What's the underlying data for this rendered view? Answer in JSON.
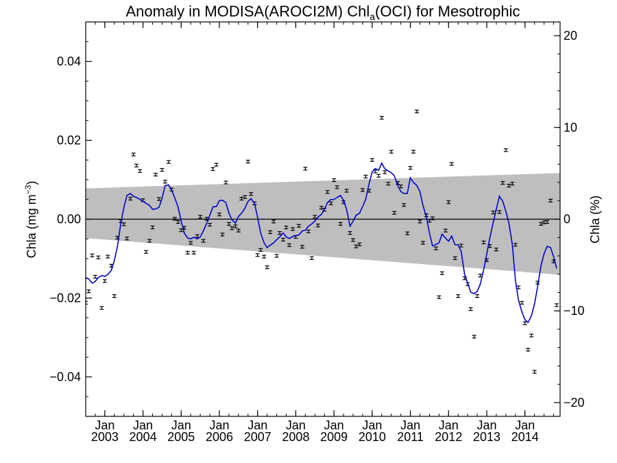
{
  "chart_data": {
    "type": "scatter",
    "title": {
      "main": "Anomaly in MODISA(AROCI2M) Chl",
      "subscript": "a",
      "rest": "(OCI) for Mesotrophic"
    },
    "ylabel": {
      "text": "Chla (mg m",
      "superscript": "−3",
      "close": ")"
    },
    "y2label": "Chla (%)",
    "xlim": [
      2002.5,
      2014.92
    ],
    "ylim": [
      -0.05,
      0.05
    ],
    "y2lim": [
      -21.5,
      21.5
    ],
    "yticks": [
      {
        "value": 0.04,
        "label": "0.04"
      },
      {
        "value": 0.02,
        "label": "0.02"
      },
      {
        "value": 0.0,
        "label": "0.00"
      },
      {
        "value": -0.02,
        "label": "−0.02"
      },
      {
        "value": -0.04,
        "label": "−0.04"
      }
    ],
    "y2ticks": [
      {
        "value": 20,
        "label": "20"
      },
      {
        "value": 10,
        "label": "10"
      },
      {
        "value": 0,
        "label": "0"
      },
      {
        "value": -10,
        "label": "−10"
      },
      {
        "value": -20,
        "label": "−20"
      }
    ],
    "xticks": [
      {
        "value": 2003.0,
        "month": "Jan",
        "year": "2003"
      },
      {
        "value": 2004.0,
        "month": "Jan",
        "year": "2004"
      },
      {
        "value": 2005.0,
        "month": "Jan",
        "year": "2005"
      },
      {
        "value": 2006.0,
        "month": "Jan",
        "year": "2006"
      },
      {
        "value": 2007.0,
        "month": "Jan",
        "year": "2007"
      },
      {
        "value": 2008.0,
        "month": "Jan",
        "year": "2008"
      },
      {
        "value": 2009.0,
        "month": "Jan",
        "year": "2009"
      },
      {
        "value": 2010.0,
        "month": "Jan",
        "year": "2010"
      },
      {
        "value": 2011.0,
        "month": "Jan",
        "year": "2011"
      },
      {
        "value": 2012.0,
        "month": "Jan",
        "year": "2012"
      },
      {
        "value": 2013.0,
        "month": "Jan",
        "year": "2013"
      },
      {
        "value": 2014.0,
        "month": "Jan",
        "year": "2014"
      }
    ],
    "band": {
      "x": [
        2002.5,
        2014.92
      ],
      "upper": [
        0.0078,
        0.0117
      ],
      "lower": [
        -0.0048,
        -0.0141
      ],
      "color": "#bebebe"
    },
    "zero_line": 0.0,
    "points_color": "#000000",
    "line_color": "#0000cc",
    "points": [
      [
        2002.5,
        -0.0212
      ],
      [
        2002.58,
        -0.0183
      ],
      [
        2002.67,
        -0.0092
      ],
      [
        2002.75,
        -0.0146
      ],
      [
        2002.83,
        -0.0097
      ],
      [
        2002.92,
        -0.0225
      ],
      [
        2003.0,
        -0.0157
      ],
      [
        2003.08,
        -0.0095
      ],
      [
        2003.17,
        -0.0118
      ],
      [
        2003.25,
        -0.0195
      ],
      [
        2003.33,
        -0.0047
      ],
      [
        2003.42,
        -0.0005
      ],
      [
        2003.5,
        -0.0013
      ],
      [
        2003.58,
        -0.0049
      ],
      [
        2003.67,
        0.0052
      ],
      [
        2003.75,
        0.0164
      ],
      [
        2003.83,
        0.0136
      ],
      [
        2003.92,
        0.0122
      ],
      [
        2004.0,
        0.0048
      ],
      [
        2004.08,
        -0.0083
      ],
      [
        2004.17,
        -0.0055
      ],
      [
        2004.25,
        -0.0021
      ],
      [
        2004.33,
        0.0113
      ],
      [
        2004.42,
        0.0051
      ],
      [
        2004.5,
        0.0125
      ],
      [
        2004.58,
        0.0095
      ],
      [
        2004.67,
        0.0145
      ],
      [
        2004.75,
        0.0075
      ],
      [
        2004.83,
        0.0001
      ],
      [
        2004.92,
        -0.0007
      ],
      [
        2005.0,
        -0.0028
      ],
      [
        2005.08,
        -0.0022
      ],
      [
        2005.17,
        -0.0085
      ],
      [
        2005.25,
        -0.006
      ],
      [
        2005.33,
        -0.0085
      ],
      [
        2005.42,
        -0.0043
      ],
      [
        2005.5,
        0.0006
      ],
      [
        2005.58,
        -0.0055
      ],
      [
        2005.67,
        0.0001
      ],
      [
        2005.75,
        -0.0014
      ],
      [
        2005.83,
        0.0127
      ],
      [
        2005.92,
        0.0138
      ],
      [
        2006.0,
        0.0012
      ],
      [
        2006.08,
        -0.0039
      ],
      [
        2006.17,
        0.0093
      ],
      [
        2006.25,
        -0.0012
      ],
      [
        2006.33,
        -0.0023
      ],
      [
        2006.42,
        -0.0018
      ],
      [
        2006.5,
        -0.0029
      ],
      [
        2006.58,
        0.0052
      ],
      [
        2006.67,
        0.0056
      ],
      [
        2006.75,
        0.0146
      ],
      [
        2006.83,
        0.0064
      ],
      [
        2006.92,
        0.004
      ],
      [
        2007.0,
        -0.0091
      ],
      [
        2007.08,
        -0.0078
      ],
      [
        2007.17,
        -0.0095
      ],
      [
        2007.25,
        -0.0122
      ],
      [
        2007.33,
        -0.0033
      ],
      [
        2007.42,
        -0.0006
      ],
      [
        2007.5,
        -0.0093
      ],
      [
        2007.58,
        -0.0035
      ],
      [
        2007.67,
        -0.0052
      ],
      [
        2007.75,
        -0.0021
      ],
      [
        2007.83,
        -0.0066
      ],
      [
        2007.92,
        -0.0025
      ],
      [
        2008.0,
        -0.0045
      ],
      [
        2008.08,
        -0.0017
      ],
      [
        2008.17,
        -0.007
      ],
      [
        2008.25,
        0.0128
      ],
      [
        2008.33,
        -0.0031
      ],
      [
        2008.42,
        -0.0099
      ],
      [
        2008.5,
        0.0006
      ],
      [
        2008.58,
        -0.0016
      ],
      [
        2008.67,
        0.0029
      ],
      [
        2008.75,
        0.0024
      ],
      [
        2008.83,
        0.0069
      ],
      [
        2008.92,
        0.004
      ],
      [
        2009.0,
        0.0099
      ],
      [
        2009.08,
        0.0081
      ],
      [
        2009.17,
        -0.0012
      ],
      [
        2009.25,
        0.0043
      ],
      [
        2009.33,
        0.0072
      ],
      [
        2009.42,
        -0.0035
      ],
      [
        2009.5,
        -0.0053
      ],
      [
        2009.58,
        -0.0069
      ],
      [
        2009.67,
        -0.0064
      ],
      [
        2009.75,
        0.0074
      ],
      [
        2009.83,
        0.0108
      ],
      [
        2009.92,
        0.0072
      ],
      [
        2010.0,
        0.015
      ],
      [
        2010.08,
        0.0121
      ],
      [
        2010.17,
        0.011
      ],
      [
        2010.25,
        0.0257
      ],
      [
        2010.33,
        0.0119
      ],
      [
        2010.42,
        0.009
      ],
      [
        2010.5,
        0.0171
      ],
      [
        2010.58,
        0.0016
      ],
      [
        2010.67,
        0.0092
      ],
      [
        2010.75,
        0.0083
      ],
      [
        2010.83,
        0.0036
      ],
      [
        2010.92,
        -0.0036
      ],
      [
        2011.0,
        0.013
      ],
      [
        2011.08,
        0.0171
      ],
      [
        2011.17,
        0.0273
      ],
      [
        2011.25,
        -0.0006
      ],
      [
        2011.33,
        -0.006
      ],
      [
        2011.42,
        0.001
      ],
      [
        2011.5,
        -0.0004
      ],
      [
        2011.58,
        0.0002
      ],
      [
        2011.67,
        -0.0074
      ],
      [
        2011.75,
        -0.0198
      ],
      [
        2011.83,
        -0.0137
      ],
      [
        2011.92,
        -0.0029
      ],
      [
        2012.0,
        0.0043
      ],
      [
        2012.08,
        0.014
      ],
      [
        2012.17,
        -0.0099
      ],
      [
        2012.25,
        -0.0195
      ],
      [
        2012.33,
        -0.0067
      ],
      [
        2012.42,
        -0.015
      ],
      [
        2012.5,
        -0.0165
      ],
      [
        2012.58,
        -0.0228
      ],
      [
        2012.67,
        -0.0298
      ],
      [
        2012.75,
        -0.0195
      ],
      [
        2012.83,
        -0.0143
      ],
      [
        2012.92,
        -0.0059
      ],
      [
        2013.0,
        -0.0104
      ],
      [
        2013.08,
        -0.0068
      ],
      [
        2013.17,
        0.0017
      ],
      [
        2013.25,
        -0.0077
      ],
      [
        2013.33,
        0.0018
      ],
      [
        2013.42,
        0.0092
      ],
      [
        2013.5,
        0.0175
      ],
      [
        2013.58,
        0.0085
      ],
      [
        2013.67,
        0.009
      ],
      [
        2013.75,
        -0.0065
      ],
      [
        2013.83,
        -0.0173
      ],
      [
        2013.92,
        -0.0212
      ],
      [
        2014.0,
        -0.0264
      ],
      [
        2014.08,
        -0.0331
      ],
      [
        2014.17,
        -0.0295
      ],
      [
        2014.25,
        -0.0387
      ],
      [
        2014.33,
        -0.0161
      ],
      [
        2014.42,
        -0.0012
      ],
      [
        2014.5,
        -0.0008
      ],
      [
        2014.58,
        -0.0007
      ],
      [
        2014.67,
        0.0047
      ],
      [
        2014.75,
        -0.0107
      ],
      [
        2014.83,
        -0.0218
      ]
    ],
    "line": [
      [
        2002.5,
        -0.0148
      ],
      [
        2002.58,
        -0.0152
      ],
      [
        2002.67,
        -0.0162
      ],
      [
        2002.75,
        -0.0158
      ],
      [
        2002.83,
        -0.0148
      ],
      [
        2002.92,
        -0.0143
      ],
      [
        2003.0,
        -0.0145
      ],
      [
        2003.08,
        -0.014
      ],
      [
        2003.17,
        -0.013
      ],
      [
        2003.25,
        -0.0105
      ],
      [
        2003.33,
        -0.007
      ],
      [
        2003.42,
        -0.001
      ],
      [
        2003.5,
        0.003
      ],
      [
        2003.58,
        0.006
      ],
      [
        2003.67,
        0.0065
      ],
      [
        2003.75,
        0.0058
      ],
      [
        2003.83,
        0.0055
      ],
      [
        2003.92,
        0.005
      ],
      [
        2004.0,
        0.0045
      ],
      [
        2004.08,
        0.004
      ],
      [
        2004.17,
        0.0035
      ],
      [
        2004.25,
        0.0025
      ],
      [
        2004.33,
        0.0026
      ],
      [
        2004.42,
        0.003
      ],
      [
        2004.5,
        0.0053
      ],
      [
        2004.58,
        0.0085
      ],
      [
        2004.67,
        0.0087
      ],
      [
        2004.75,
        0.0073
      ],
      [
        2004.83,
        0.0055
      ],
      [
        2004.92,
        0.003
      ],
      [
        2005.0,
        -0.0005
      ],
      [
        2005.08,
        -0.0035
      ],
      [
        2005.17,
        -0.0048
      ],
      [
        2005.25,
        -0.005
      ],
      [
        2005.33,
        -0.0046
      ],
      [
        2005.42,
        -0.005
      ],
      [
        2005.5,
        -0.0045
      ],
      [
        2005.58,
        -0.003
      ],
      [
        2005.67,
        -0.001
      ],
      [
        2005.75,
        0.001
      ],
      [
        2005.83,
        0.0031
      ],
      [
        2005.92,
        0.0032
      ],
      [
        2006.0,
        0.0047
      ],
      [
        2006.08,
        0.0048
      ],
      [
        2006.17,
        0.0042
      ],
      [
        2006.25,
        0.0015
      ],
      [
        2006.33,
        -0.0002
      ],
      [
        2006.42,
        -0.001
      ],
      [
        2006.5,
        0.0007
      ],
      [
        2006.58,
        0.0015
      ],
      [
        2006.67,
        0.0028
      ],
      [
        2006.75,
        0.0045
      ],
      [
        2006.83,
        0.0052
      ],
      [
        2006.92,
        0.004
      ],
      [
        2007.0,
        0.0005
      ],
      [
        2007.08,
        -0.0035
      ],
      [
        2007.17,
        -0.006
      ],
      [
        2007.25,
        -0.0072
      ],
      [
        2007.33,
        -0.0066
      ],
      [
        2007.42,
        -0.006
      ],
      [
        2007.5,
        -0.0052
      ],
      [
        2007.58,
        -0.0045
      ],
      [
        2007.67,
        -0.0035
      ],
      [
        2007.75,
        -0.0045
      ],
      [
        2007.83,
        -0.0049
      ],
      [
        2007.92,
        -0.0044
      ],
      [
        2008.0,
        -0.0042
      ],
      [
        2008.08,
        -0.004
      ],
      [
        2008.17,
        -0.003
      ],
      [
        2008.25,
        -0.0028
      ],
      [
        2008.33,
        -0.0018
      ],
      [
        2008.42,
        -0.0012
      ],
      [
        2008.5,
        -0.0005
      ],
      [
        2008.58,
        0.0005
      ],
      [
        2008.67,
        0.0012
      ],
      [
        2008.75,
        0.0025
      ],
      [
        2008.83,
        0.0042
      ],
      [
        2008.92,
        0.005
      ],
      [
        2009.0,
        0.005
      ],
      [
        2009.08,
        0.0055
      ],
      [
        2009.17,
        0.006
      ],
      [
        2009.25,
        0.0048
      ],
      [
        2009.33,
        0.0025
      ],
      [
        2009.42,
        -0.0018
      ],
      [
        2009.5,
        -0.0005
      ],
      [
        2009.58,
        0.001
      ],
      [
        2009.67,
        0.0015
      ],
      [
        2009.75,
        0.0032
      ],
      [
        2009.83,
        0.005
      ],
      [
        2009.92,
        0.009
      ],
      [
        2010.0,
        0.012
      ],
      [
        2010.08,
        0.0128
      ],
      [
        2010.17,
        0.0124
      ],
      [
        2010.25,
        0.0142
      ],
      [
        2010.33,
        0.0128
      ],
      [
        2010.42,
        0.0122
      ],
      [
        2010.5,
        0.0118
      ],
      [
        2010.58,
        0.011
      ],
      [
        2010.67,
        0.0085
      ],
      [
        2010.75,
        0.007
      ],
      [
        2010.83,
        0.0065
      ],
      [
        2010.92,
        0.0065
      ],
      [
        2011.0,
        0.0105
      ],
      [
        2011.08,
        0.0093
      ],
      [
        2011.17,
        0.0085
      ],
      [
        2011.25,
        0.007
      ],
      [
        2011.33,
        0.0035
      ],
      [
        2011.42,
        0.0005
      ],
      [
        2011.5,
        -0.0035
      ],
      [
        2011.58,
        -0.0068
      ],
      [
        2011.67,
        -0.0064
      ],
      [
        2011.75,
        -0.006
      ],
      [
        2011.83,
        -0.0038
      ],
      [
        2011.92,
        -0.0048
      ],
      [
        2012.0,
        -0.0056
      ],
      [
        2012.08,
        -0.0043
      ],
      [
        2012.17,
        -0.0065
      ],
      [
        2012.25,
        -0.0065
      ],
      [
        2012.33,
        -0.0082
      ],
      [
        2012.42,
        -0.014
      ],
      [
        2012.5,
        -0.0162
      ],
      [
        2012.58,
        -0.0185
      ],
      [
        2012.67,
        -0.0189
      ],
      [
        2012.75,
        -0.0183
      ],
      [
        2012.83,
        -0.0165
      ],
      [
        2012.92,
        -0.0128
      ],
      [
        2013.0,
        -0.0088
      ],
      [
        2013.08,
        -0.0048
      ],
      [
        2013.17,
        -0.0008
      ],
      [
        2013.25,
        0.0025
      ],
      [
        2013.33,
        0.0058
      ],
      [
        2013.42,
        0.0045
      ],
      [
        2013.5,
        0.002
      ],
      [
        2013.58,
        -0.001
      ],
      [
        2013.67,
        -0.0065
      ],
      [
        2013.75,
        -0.0155
      ],
      [
        2013.83,
        -0.0205
      ],
      [
        2013.92,
        -0.0235
      ],
      [
        2014.0,
        -0.0255
      ],
      [
        2014.08,
        -0.0262
      ],
      [
        2014.17,
        -0.0245
      ],
      [
        2014.25,
        -0.0215
      ],
      [
        2014.33,
        -0.0172
      ],
      [
        2014.42,
        -0.0118
      ],
      [
        2014.5,
        -0.0088
      ],
      [
        2014.58,
        -0.0069
      ],
      [
        2014.67,
        -0.0072
      ],
      [
        2014.75,
        -0.0095
      ],
      [
        2014.83,
        -0.0125
      ]
    ]
  }
}
